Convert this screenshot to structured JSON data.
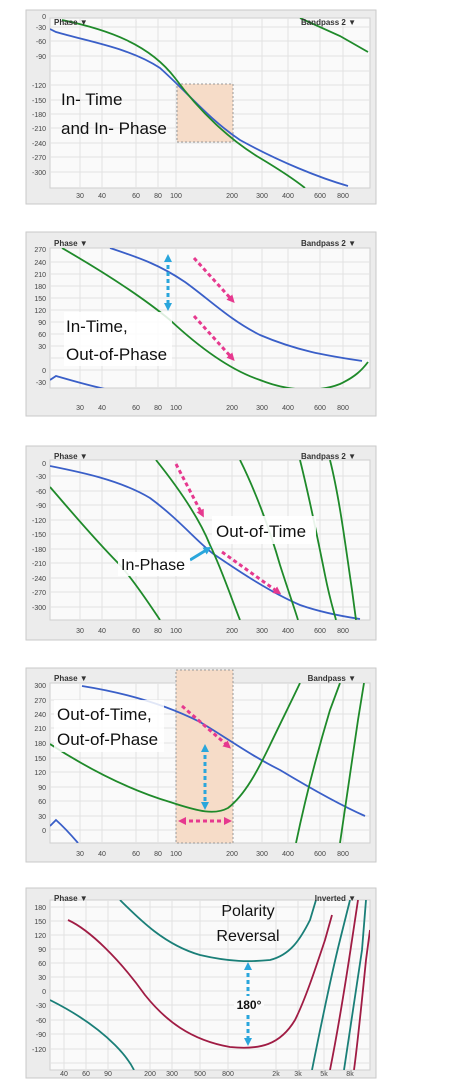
{
  "panels": [
    {
      "header_left": "Phase ▼",
      "header_right": "Bandpass 2 ▼",
      "y_ticks": [
        "0",
        "-30",
        "-60",
        "-90",
        "-120",
        "-150",
        "-180",
        "-210",
        "-240",
        "-270",
        "-300"
      ],
      "x_ticks": [
        "30",
        "40",
        "60",
        "80",
        "100",
        "200",
        "300",
        "400",
        "600",
        "800"
      ],
      "caption": [
        "In- Time",
        "and In- Phase"
      ]
    },
    {
      "header_left": "Phase ▼",
      "header_right": "Bandpass 2 ▼",
      "y_ticks": [
        "270",
        "240",
        "210",
        "180",
        "150",
        "120",
        "90",
        "60",
        "30",
        "0",
        "-30"
      ],
      "x_ticks": [
        "30",
        "40",
        "60",
        "80",
        "100",
        "200",
        "300",
        "400",
        "600",
        "800"
      ],
      "caption": [
        "In-Time,",
        "Out-of-Phase"
      ]
    },
    {
      "header_left": "Phase ▼",
      "header_right": "Bandpass 2 ▼",
      "y_ticks": [
        "0",
        "-30",
        "-60",
        "-90",
        "-120",
        "-150",
        "-180",
        "-210",
        "-240",
        "-270",
        "-300"
      ],
      "x_ticks": [
        "30",
        "40",
        "60",
        "80",
        "100",
        "200",
        "300",
        "400",
        "600",
        "800"
      ],
      "caption": [
        "Out-of-Time"
      ],
      "label_in_phase": "In-Phase"
    },
    {
      "header_left": "Phase ▼",
      "header_right": "Bandpass ▼",
      "y_ticks": [
        "300",
        "270",
        "240",
        "210",
        "180",
        "150",
        "120",
        "90",
        "60",
        "30",
        "0"
      ],
      "x_ticks": [
        "30",
        "40",
        "60",
        "80",
        "100",
        "200",
        "300",
        "400",
        "600",
        "800"
      ],
      "caption": [
        "Out-of-Time,",
        "Out-of-Phase"
      ]
    },
    {
      "header_left": "Phase ▼",
      "header_right": "Inverted ▼",
      "y_ticks": [
        "180",
        "150",
        "120",
        "90",
        "60",
        "30",
        "0",
        "-30",
        "-60",
        "-90",
        "-120"
      ],
      "x_ticks": [
        "40",
        "60",
        "90",
        "200",
        "300",
        "500",
        "800",
        "2k",
        "3k",
        "5k",
        "8k"
      ],
      "caption": [
        "Polarity",
        "Reversal"
      ],
      "label_degrees": "180°"
    }
  ],
  "colors": {
    "blue": "#3a5fc8",
    "green": "#1f8a2a",
    "teal": "#1a7f78",
    "crimson": "#a01c44",
    "pink_arrow": "#e6398f",
    "cyan_arrow": "#2aa6dc",
    "highlight": "#f6dcc8"
  }
}
